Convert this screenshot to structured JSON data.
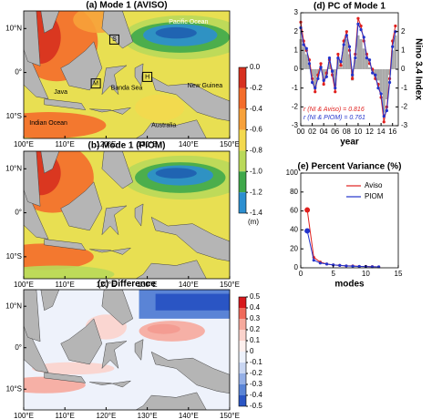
{
  "chart_data": [
    {
      "type": "map",
      "title": "(a) Mode 1 (AVISO)",
      "xlim": [
        100,
        150
      ],
      "ylim": [
        -15,
        14
      ],
      "xticks": [
        {
          "value": 100,
          "label": "100°E"
        },
        {
          "value": 110,
          "label": "110°E"
        },
        {
          "value": 120,
          "label": "120°E"
        },
        {
          "value": 130,
          "label": "130°E"
        },
        {
          "value": 140,
          "label": "140°E"
        },
        {
          "value": 150,
          "label": "150°E"
        }
      ],
      "yticks": [
        {
          "value": 10,
          "label": "10°N"
        },
        {
          "value": 0,
          "label": "0°"
        },
        {
          "value": -10,
          "label": "10°S"
        }
      ],
      "annotations": [
        "Pacific Ocean",
        "Indian Ocean",
        "Banda Sea",
        "New Guinea",
        "Australia",
        "Java",
        "S",
        "M",
        "H"
      ],
      "colorbar": {
        "ticks": [
          {
            "value": 0,
            "label": "0.0"
          },
          -0.2,
          -0.4,
          -0.6,
          -0.8,
          {
            "value": -1,
            "label": "-1.0"
          },
          -1.2,
          -1.4
        ],
        "unit": "(m)",
        "colors": [
          "#d7301f",
          "#f46d2b",
          "#f7a13a",
          "#f3d94e",
          "#b9d95a",
          "#3fa84a",
          "#2c8fd0"
        ]
      }
    },
    {
      "type": "map",
      "title": "(b) Mode 1 (PIOM)",
      "xlim": [
        100,
        150
      ],
      "ylim": [
        -15,
        14
      ],
      "xticks": [
        {
          "value": 100,
          "label": "100°E"
        },
        {
          "value": 110,
          "label": "110°E"
        },
        {
          "value": 120,
          "label": "120°E"
        },
        {
          "value": 130,
          "label": "130°E"
        },
        {
          "value": 140,
          "label": "140°E"
        },
        {
          "value": 150,
          "label": "150°E"
        }
      ],
      "yticks": [
        {
          "value": 10,
          "label": "10°N"
        },
        {
          "value": 0,
          "label": "0°"
        },
        {
          "value": -10,
          "label": "10°S"
        }
      ]
    },
    {
      "type": "map",
      "title": "(c) Difference",
      "xlim": [
        100,
        150
      ],
      "ylim": [
        -15,
        14
      ],
      "xticks": [
        {
          "value": 100,
          "label": "100°E"
        },
        {
          "value": 110,
          "label": "110°E"
        },
        {
          "value": 120,
          "label": "120°E"
        },
        {
          "value": 130,
          "label": "130°E"
        },
        {
          "value": 140,
          "label": "140°E"
        },
        {
          "value": 150,
          "label": "150°E"
        }
      ],
      "yticks": [
        {
          "value": 10,
          "label": "10°N"
        },
        {
          "value": 0,
          "label": "0°"
        },
        {
          "value": -10,
          "label": "10°S"
        }
      ],
      "colorbar": {
        "ticks": [
          0.5,
          0.4,
          0.3,
          0.2,
          0.1,
          0,
          -0.1,
          -0.2,
          -0.3,
          -0.4,
          -0.5
        ],
        "colors": [
          "#d7191c",
          "#ef6a5a",
          "#f6a99c",
          "#fbd3cc",
          "#fdf0ee",
          "#eef2fb",
          "#c9d6f2",
          "#94afe6",
          "#5a84d6",
          "#2a55c4"
        ]
      }
    },
    {
      "type": "line",
      "title": "(d) PC of Mode 1",
      "xlabel": "year",
      "y2label": "Nino 3.4 Index",
      "x": [
        0,
        0.5,
        1,
        1.5,
        2,
        2.5,
        3,
        3.5,
        4,
        4.5,
        5,
        5.5,
        6,
        6.5,
        7,
        7.5,
        8,
        8.5,
        9,
        9.5,
        10,
        10.5,
        11,
        11.5,
        12,
        12.5,
        13,
        13.5,
        14,
        14.5,
        15,
        15.5,
        16,
        16.5
      ],
      "xlim": [
        0,
        17
      ],
      "xticks": [
        {
          "value": 0,
          "label": "00"
        },
        {
          "value": 2,
          "label": "02"
        },
        {
          "value": 4,
          "label": "04"
        },
        {
          "value": 6,
          "label": "06"
        },
        {
          "value": 8,
          "label": "08"
        },
        10,
        12,
        14,
        16
      ],
      "ylim": [
        -3,
        3
      ],
      "yticks": [
        3,
        2,
        1,
        0,
        -1,
        -2,
        -3
      ],
      "y2lim": [
        -3,
        3
      ],
      "y2ticks": [
        2,
        1,
        0,
        -1,
        -2,
        -3
      ],
      "annotations": [
        "r (NI & Aviso) = 0.816",
        "r (NI & PIOM) = 0.761"
      ],
      "series": [
        {
          "color": "#aaaaaa",
          "axis": "y2",
          "values": [
            1.6,
            1.2,
            0.8,
            0.3,
            -0.4,
            -1.0,
            -0.4,
            0.2,
            -0.6,
            -0.3,
            0.4,
            -0.2,
            -0.9,
            0.6,
            0.1,
            1.2,
            1.6,
            0.8,
            -0.6,
            0.5,
            1.8,
            1.6,
            1.1,
            0.6,
            0.1,
            -0.1,
            -0.4,
            -0.6,
            -1.2,
            -2.3,
            -1.6,
            -0.3,
            1.0,
            1.8
          ]
        },
        {
          "color": "#e0201e",
          "values": [
            2.5,
            1.5,
            1.0,
            0.5,
            -0.5,
            -1.2,
            -0.3,
            0.3,
            -0.8,
            -0.2,
            0.5,
            -0.3,
            -1.2,
            0.8,
            0.2,
            1.5,
            2.0,
            1.0,
            -0.5,
            0.8,
            2.7,
            2.3,
            1.5,
            0.8,
            0.3,
            0.0,
            -0.5,
            -0.8,
            -1.5,
            -2.8,
            -2.0,
            -0.5,
            1.5,
            2.3
          ]
        },
        {
          "color": "#2233cc",
          "values": [
            2.2,
            1.3,
            1.1,
            0.3,
            -0.7,
            -1.0,
            -0.5,
            0.1,
            -0.6,
            -0.4,
            0.6,
            -0.1,
            -1.0,
            0.6,
            0.4,
            1.3,
            1.8,
            1.2,
            -0.3,
            0.6,
            2.4,
            2.1,
            1.7,
            0.6,
            0.5,
            -0.2,
            -0.3,
            -1.0,
            -1.3,
            -2.5,
            -2.2,
            -0.7,
            1.2,
            2.0
          ]
        }
      ]
    },
    {
      "type": "line",
      "title": "(e) Percent Variance (%)",
      "xlabel": "modes",
      "x": [
        1,
        2,
        3,
        4,
        5,
        6,
        7,
        8,
        9,
        10,
        11,
        12
      ],
      "xlim": [
        0,
        15
      ],
      "xticks": [
        0,
        5,
        10,
        15
      ],
      "ylim": [
        0,
        100
      ],
      "yticks": [
        0,
        20,
        40,
        60,
        80,
        100
      ],
      "legend": "top-right",
      "series": [
        {
          "name": "Aviso",
          "color": "#e0201e",
          "values": [
            61,
            11,
            6,
            4,
            3,
            2.5,
            2,
            2,
            1.5,
            1.5,
            1.2,
            1
          ]
        },
        {
          "name": "PIOM",
          "color": "#2233cc",
          "values": [
            39,
            8,
            5,
            4,
            3,
            2.5,
            2,
            1.7,
            1.5,
            1.3,
            1.1,
            1
          ]
        }
      ]
    }
  ]
}
